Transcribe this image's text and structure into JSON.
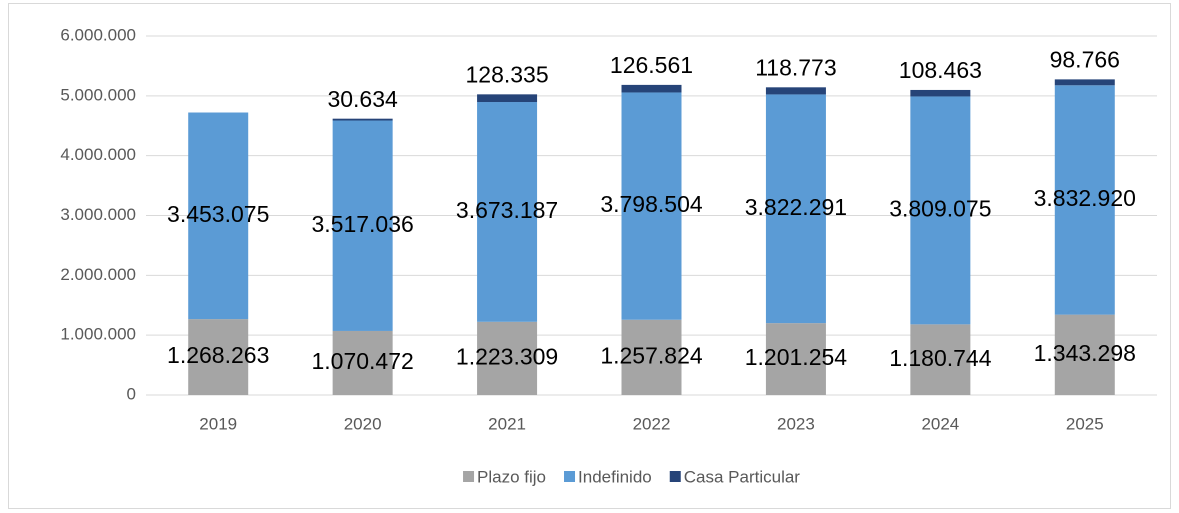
{
  "chart_data": {
    "type": "stacked_bar",
    "categories": [
      "2019",
      "2020",
      "2021",
      "2022",
      "2023",
      "2024",
      "2025"
    ],
    "series": [
      {
        "name": "Plazo fijo",
        "color": "#a5a5a5",
        "values": [
          1268263,
          1070472,
          1223309,
          1257824,
          1201254,
          1180744,
          1343298
        ],
        "value_labels": [
          "1.268.263",
          "1.070.472",
          "1.223.309",
          "1.257.824",
          "1.201.254",
          "1.180.744",
          "1.343.298"
        ]
      },
      {
        "name": "Indefinido",
        "color": "#5b9bd5",
        "values": [
          3453075,
          3517036,
          3673187,
          3798504,
          3822291,
          3809075,
          3832920
        ],
        "value_labels": [
          "3.453.075",
          "3.517.036",
          "3.673.187",
          "3.798.504",
          "3.822.291",
          "3.809.075",
          "3.832.920"
        ]
      },
      {
        "name": "Casa Particular",
        "color": "#264478",
        "values": [
          null,
          30634,
          128335,
          126561,
          118773,
          108463,
          98766
        ],
        "value_labels": [
          null,
          "30.634",
          "128.335",
          "126.561",
          "118.773",
          "108.463",
          "98.766"
        ]
      }
    ],
    "ylim": [
      0,
      6000000
    ],
    "yticks": [
      0,
      {
        "value": 1000000,
        "label": "1.000.000"
      },
      {
        "value": 2000000,
        "label": "2.000.000"
      },
      {
        "value": 3000000,
        "label": "3.000.000"
      },
      {
        "value": 4000000,
        "label": "4.000.000"
      },
      {
        "value": 5000000,
        "label": "5.000.000"
      },
      {
        "value": 6000000,
        "label": "6.000.000"
      }
    ],
    "grid": true,
    "legend": "bottom"
  }
}
